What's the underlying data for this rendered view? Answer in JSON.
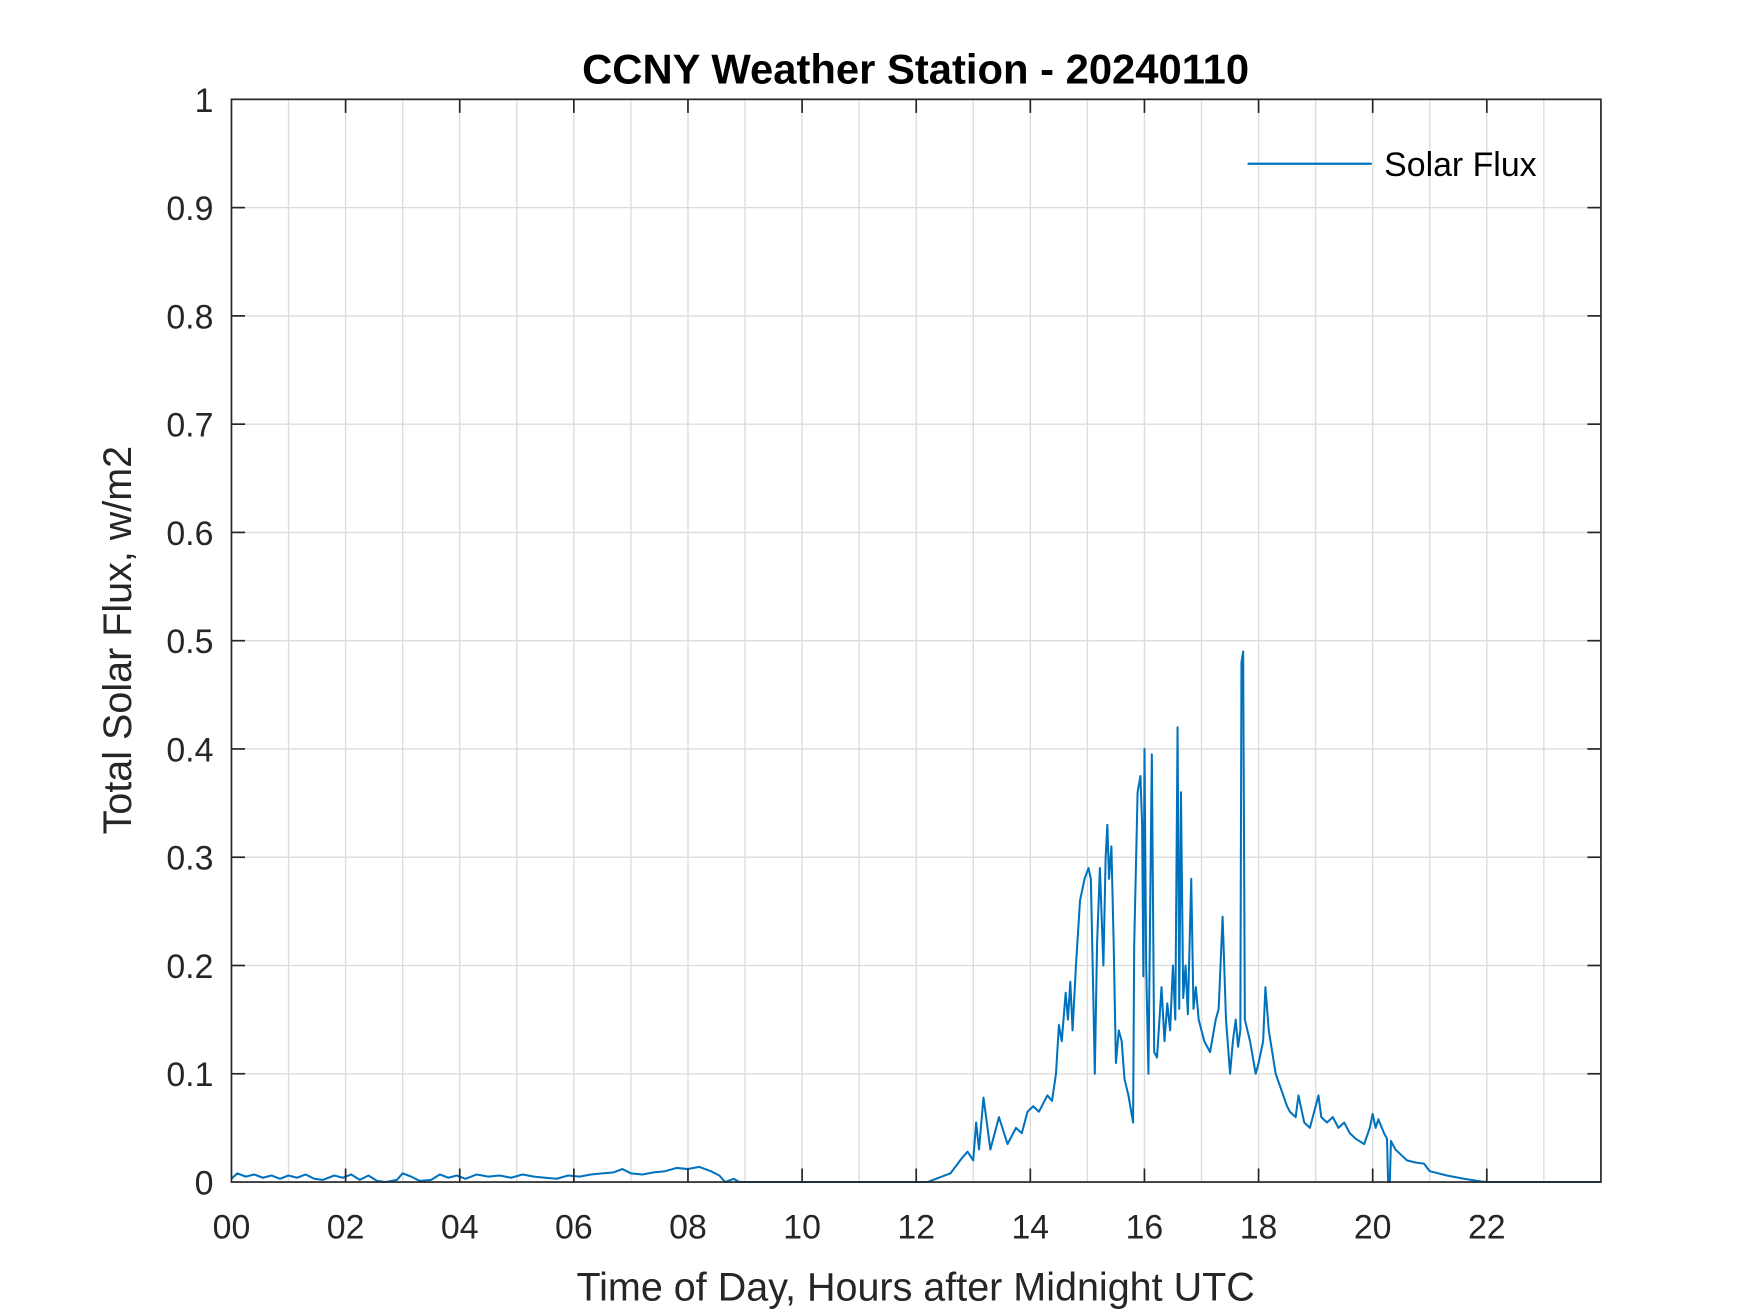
{
  "chart_data": {
    "type": "line",
    "title": "CCNY Weather Station - 20240110",
    "xlabel": "Time of Day, Hours after Midnight UTC",
    "ylabel": "Total Solar Flux, w/m2",
    "xlim": [
      0,
      24
    ],
    "ylim": [
      0,
      1
    ],
    "xticks": [
      0,
      2,
      4,
      6,
      8,
      10,
      12,
      14,
      16,
      18,
      20,
      22
    ],
    "xtick_labels": [
      "00",
      "02",
      "04",
      "06",
      "08",
      "10",
      "12",
      "14",
      "16",
      "18",
      "20",
      "22"
    ],
    "yticks": [
      0,
      0.1,
      0.2,
      0.3,
      0.4,
      0.5,
      0.6,
      0.7,
      0.8,
      0.9,
      1
    ],
    "ytick_labels": [
      "0",
      "0.1",
      "0.2",
      "0.3",
      "0.4",
      "0.5",
      "0.6",
      "0.7",
      "0.8",
      "0.9",
      "1"
    ],
    "grid": true,
    "legend_position": "top-right",
    "series": [
      {
        "name": "Solar Flux",
        "color": "#0072BD",
        "points": [
          [
            0,
            0.003
          ],
          [
            0.1,
            0.008
          ],
          [
            0.25,
            0.005
          ],
          [
            0.4,
            0.007
          ],
          [
            0.55,
            0.004
          ],
          [
            0.7,
            0.006
          ],
          [
            0.85,
            0.003
          ],
          [
            1.0,
            0.006
          ],
          [
            1.15,
            0.004
          ],
          [
            1.3,
            0.007
          ],
          [
            1.45,
            0.003
          ],
          [
            1.6,
            0.002
          ],
          [
            1.8,
            0.006
          ],
          [
            1.95,
            0.004
          ],
          [
            2.1,
            0.007
          ],
          [
            2.25,
            0.002
          ],
          [
            2.4,
            0.006
          ],
          [
            2.55,
            0.001
          ],
          [
            2.7,
            0.0
          ],
          [
            2.9,
            0.002
          ],
          [
            3.0,
            0.008
          ],
          [
            3.15,
            0.005
          ],
          [
            3.3,
            0.001
          ],
          [
            3.5,
            0.002
          ],
          [
            3.65,
            0.007
          ],
          [
            3.8,
            0.004
          ],
          [
            3.95,
            0.006
          ],
          [
            4.1,
            0.003
          ],
          [
            4.3,
            0.007
          ],
          [
            4.5,
            0.005
          ],
          [
            4.7,
            0.006
          ],
          [
            4.9,
            0.004
          ],
          [
            5.1,
            0.007
          ],
          [
            5.3,
            0.005
          ],
          [
            5.5,
            0.004
          ],
          [
            5.7,
            0.003
          ],
          [
            5.9,
            0.006
          ],
          [
            6.1,
            0.005
          ],
          [
            6.3,
            0.007
          ],
          [
            6.5,
            0.008
          ],
          [
            6.7,
            0.009
          ],
          [
            6.85,
            0.012
          ],
          [
            7.0,
            0.008
          ],
          [
            7.2,
            0.007
          ],
          [
            7.4,
            0.009
          ],
          [
            7.6,
            0.01
          ],
          [
            7.8,
            0.013
          ],
          [
            8.0,
            0.012
          ],
          [
            8.2,
            0.014
          ],
          [
            8.4,
            0.01
          ],
          [
            8.55,
            0.006
          ],
          [
            8.65,
            0.0
          ],
          [
            8.8,
            0.003
          ],
          [
            8.9,
            0.0
          ],
          [
            12.2,
            0
          ],
          [
            12.6,
            0.008
          ],
          [
            12.8,
            0.022
          ],
          [
            12.9,
            0.028
          ],
          [
            13.0,
            0.02
          ],
          [
            13.05,
            0.055
          ],
          [
            13.1,
            0.03
          ],
          [
            13.18,
            0.078
          ],
          [
            13.3,
            0.03
          ],
          [
            13.45,
            0.06
          ],
          [
            13.6,
            0.035
          ],
          [
            13.75,
            0.05
          ],
          [
            13.85,
            0.045
          ],
          [
            13.95,
            0.065
          ],
          [
            14.05,
            0.07
          ],
          [
            14.15,
            0.065
          ],
          [
            14.3,
            0.08
          ],
          [
            14.38,
            0.075
          ],
          [
            14.45,
            0.1
          ],
          [
            14.5,
            0.145
          ],
          [
            14.55,
            0.13
          ],
          [
            14.62,
            0.175
          ],
          [
            14.66,
            0.15
          ],
          [
            14.7,
            0.185
          ],
          [
            14.74,
            0.14
          ],
          [
            14.8,
            0.2
          ],
          [
            14.87,
            0.26
          ],
          [
            14.95,
            0.28
          ],
          [
            15.02,
            0.29
          ],
          [
            15.06,
            0.28
          ],
          [
            15.1,
            0.18
          ],
          [
            15.13,
            0.1
          ],
          [
            15.17,
            0.22
          ],
          [
            15.22,
            0.29
          ],
          [
            15.28,
            0.2
          ],
          [
            15.32,
            0.3
          ],
          [
            15.35,
            0.33
          ],
          [
            15.38,
            0.28
          ],
          [
            15.42,
            0.31
          ],
          [
            15.46,
            0.22
          ],
          [
            15.5,
            0.11
          ],
          [
            15.55,
            0.14
          ],
          [
            15.6,
            0.13
          ],
          [
            15.65,
            0.095
          ],
          [
            15.72,
            0.08
          ],
          [
            15.8,
            0.055
          ],
          [
            15.82,
            0.22
          ],
          [
            15.88,
            0.36
          ],
          [
            15.93,
            0.375
          ],
          [
            15.96,
            0.33
          ],
          [
            15.98,
            0.19
          ],
          [
            16.0,
            0.4
          ],
          [
            16.03,
            0.2
          ],
          [
            16.07,
            0.1
          ],
          [
            16.13,
            0.395
          ],
          [
            16.17,
            0.12
          ],
          [
            16.22,
            0.115
          ],
          [
            16.3,
            0.18
          ],
          [
            16.35,
            0.13
          ],
          [
            16.4,
            0.165
          ],
          [
            16.45,
            0.14
          ],
          [
            16.5,
            0.2
          ],
          [
            16.54,
            0.15
          ],
          [
            16.58,
            0.42
          ],
          [
            16.61,
            0.16
          ],
          [
            16.64,
            0.36
          ],
          [
            16.68,
            0.17
          ],
          [
            16.72,
            0.2
          ],
          [
            16.76,
            0.155
          ],
          [
            16.82,
            0.28
          ],
          [
            16.86,
            0.16
          ],
          [
            16.9,
            0.18
          ],
          [
            16.95,
            0.15
          ],
          [
            17.05,
            0.13
          ],
          [
            17.15,
            0.12
          ],
          [
            17.25,
            0.15
          ],
          [
            17.3,
            0.16
          ],
          [
            17.37,
            0.245
          ],
          [
            17.43,
            0.15
          ],
          [
            17.5,
            0.1
          ],
          [
            17.55,
            0.13
          ],
          [
            17.6,
            0.15
          ],
          [
            17.64,
            0.125
          ],
          [
            17.68,
            0.14
          ],
          [
            17.7,
            0.48
          ],
          [
            17.73,
            0.49
          ],
          [
            17.76,
            0.15
          ],
          [
            17.85,
            0.13
          ],
          [
            17.95,
            0.1
          ],
          [
            18.0,
            0.11
          ],
          [
            18.08,
            0.13
          ],
          [
            18.12,
            0.18
          ],
          [
            18.18,
            0.14
          ],
          [
            18.3,
            0.1
          ],
          [
            18.4,
            0.085
          ],
          [
            18.5,
            0.07
          ],
          [
            18.55,
            0.065
          ],
          [
            18.65,
            0.06
          ],
          [
            18.7,
            0.08
          ],
          [
            18.8,
            0.055
          ],
          [
            18.9,
            0.05
          ],
          [
            19.0,
            0.07
          ],
          [
            19.05,
            0.08
          ],
          [
            19.1,
            0.06
          ],
          [
            19.2,
            0.055
          ],
          [
            19.3,
            0.06
          ],
          [
            19.4,
            0.05
          ],
          [
            19.5,
            0.055
          ],
          [
            19.6,
            0.045
          ],
          [
            19.7,
            0.04
          ],
          [
            19.85,
            0.035
          ],
          [
            19.95,
            0.05
          ],
          [
            20.0,
            0.063
          ],
          [
            20.05,
            0.05
          ],
          [
            20.1,
            0.058
          ],
          [
            20.2,
            0.045
          ],
          [
            20.25,
            0.04
          ],
          [
            20.27,
            0
          ],
          [
            20.3,
            0
          ],
          [
            20.32,
            0.038
          ],
          [
            20.4,
            0.03
          ],
          [
            20.5,
            0.025
          ],
          [
            20.6,
            0.02
          ],
          [
            20.75,
            0.018
          ],
          [
            20.9,
            0.017
          ],
          [
            21.0,
            0.01
          ],
          [
            21.3,
            0.006
          ],
          [
            21.6,
            0.003
          ],
          [
            21.9,
            0.0005
          ],
          [
            22.0,
            0
          ],
          [
            24,
            0
          ]
        ]
      }
    ]
  }
}
